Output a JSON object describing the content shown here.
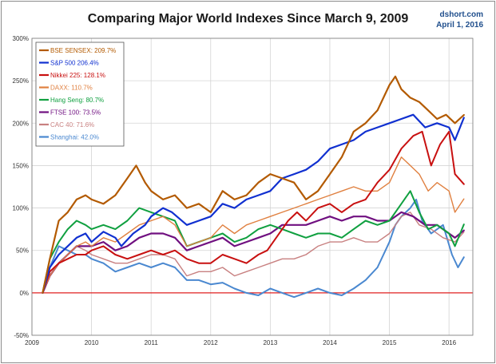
{
  "chart_data": {
    "type": "line",
    "title": "Comparing Major World Indexes Since March 9, 2009",
    "source": "dshort.com",
    "date_label": "April 1, 2016",
    "xlabel": "",
    "ylabel": "",
    "x_ticks": [
      "2009",
      "2010",
      "2011",
      "2012",
      "2013",
      "2014",
      "2015",
      "2016"
    ],
    "y_ticks": [
      "-50%",
      "0%",
      "50%",
      "100%",
      "150%",
      "200%",
      "250%",
      "300%"
    ],
    "xlim": [
      2009.0,
      2016.4
    ],
    "ylim": [
      -50,
      300
    ],
    "grid": true,
    "legend_position": "top-left",
    "zero_line_color": "#e02020",
    "series": [
      {
        "name": "BSE SENSEX: 209.7%",
        "color": "#b35a00",
        "width": 2.2,
        "x": [
          2009.18,
          2009.3,
          2009.45,
          2009.6,
          2009.75,
          2009.9,
          2010.0,
          2010.2,
          2010.4,
          2010.6,
          2010.75,
          2010.9,
          2011.0,
          2011.2,
          2011.4,
          2011.6,
          2011.8,
          2012.0,
          2012.2,
          2012.4,
          2012.6,
          2012.8,
          2013.0,
          2013.2,
          2013.4,
          2013.6,
          2013.8,
          2014.0,
          2014.2,
          2014.4,
          2014.6,
          2014.8,
          2015.0,
          2015.1,
          2015.2,
          2015.35,
          2015.5,
          2015.65,
          2015.8,
          2015.95,
          2016.1,
          2016.25
        ],
        "y": [
          0,
          40,
          85,
          95,
          110,
          115,
          110,
          105,
          115,
          135,
          150,
          130,
          120,
          110,
          115,
          100,
          105,
          95,
          120,
          110,
          115,
          130,
          140,
          135,
          130,
          110,
          120,
          140,
          160,
          190,
          200,
          215,
          245,
          255,
          240,
          230,
          225,
          215,
          205,
          210,
          200,
          209.7
        ]
      },
      {
        "name": "S&P 500 206.4%",
        "color": "#1030d0",
        "width": 2.2,
        "x": [
          2009.18,
          2009.3,
          2009.45,
          2009.6,
          2009.75,
          2009.9,
          2010.0,
          2010.2,
          2010.4,
          2010.5,
          2010.7,
          2010.9,
          2011.0,
          2011.2,
          2011.35,
          2011.6,
          2011.8,
          2012.0,
          2012.2,
          2012.4,
          2012.6,
          2012.8,
          2013.0,
          2013.2,
          2013.4,
          2013.6,
          2013.8,
          2014.0,
          2014.2,
          2014.4,
          2014.6,
          2014.8,
          2015.0,
          2015.2,
          2015.4,
          2015.6,
          2015.8,
          2016.0,
          2016.1,
          2016.25
        ],
        "y": [
          0,
          30,
          45,
          55,
          65,
          70,
          60,
          72,
          65,
          55,
          70,
          80,
          90,
          100,
          95,
          80,
          85,
          90,
          105,
          100,
          110,
          115,
          120,
          135,
          140,
          145,
          155,
          170,
          175,
          180,
          190,
          195,
          200,
          205,
          210,
          195,
          200,
          195,
          180,
          206.4
        ]
      },
      {
        "name": "Nikkei 225: 128.1%",
        "color": "#c81010",
        "width": 2.0,
        "x": [
          2009.18,
          2009.3,
          2009.45,
          2009.6,
          2009.75,
          2009.9,
          2010.0,
          2010.2,
          2010.4,
          2010.6,
          2010.8,
          2011.0,
          2011.2,
          2011.4,
          2011.6,
          2011.8,
          2012.0,
          2012.2,
          2012.4,
          2012.6,
          2012.8,
          2012.95,
          2013.1,
          2013.3,
          2013.45,
          2013.6,
          2013.8,
          2014.0,
          2014.2,
          2014.4,
          2014.6,
          2014.8,
          2015.0,
          2015.2,
          2015.4,
          2015.55,
          2015.7,
          2015.85,
          2016.0,
          2016.1,
          2016.25
        ],
        "y": [
          0,
          25,
          35,
          40,
          45,
          45,
          50,
          55,
          45,
          40,
          45,
          50,
          45,
          50,
          40,
          35,
          35,
          45,
          40,
          35,
          45,
          50,
          65,
          85,
          95,
          85,
          100,
          105,
          95,
          105,
          110,
          130,
          145,
          170,
          185,
          190,
          150,
          175,
          190,
          140,
          128.1
        ]
      },
      {
        "name": "DAXX: 110.7%",
        "color": "#e08040",
        "width": 1.4,
        "x": [
          2009.18,
          2009.3,
          2009.45,
          2009.6,
          2009.75,
          2009.9,
          2010.0,
          2010.2,
          2010.4,
          2010.6,
          2010.8,
          2011.0,
          2011.2,
          2011.4,
          2011.6,
          2011.8,
          2012.0,
          2012.2,
          2012.4,
          2012.6,
          2012.8,
          2013.0,
          2013.2,
          2013.4,
          2013.6,
          2013.8,
          2014.0,
          2014.2,
          2014.4,
          2014.6,
          2014.8,
          2015.0,
          2015.2,
          2015.35,
          2015.5,
          2015.65,
          2015.8,
          2016.0,
          2016.1,
          2016.25
        ],
        "y": [
          0,
          20,
          35,
          45,
          55,
          60,
          55,
          65,
          60,
          70,
          80,
          85,
          90,
          80,
          55,
          60,
          65,
          80,
          70,
          80,
          85,
          90,
          95,
          100,
          105,
          110,
          115,
          120,
          125,
          120,
          120,
          130,
          160,
          150,
          140,
          120,
          130,
          120,
          95,
          110.7
        ]
      },
      {
        "name": "Hang Seng: 80.7%",
        "color": "#10a040",
        "width": 2.0,
        "x": [
          2009.18,
          2009.3,
          2009.45,
          2009.6,
          2009.75,
          2009.9,
          2010.0,
          2010.2,
          2010.4,
          2010.6,
          2010.8,
          2011.0,
          2011.2,
          2011.4,
          2011.6,
          2011.8,
          2012.0,
          2012.2,
          2012.4,
          2012.6,
          2012.8,
          2013.0,
          2013.2,
          2013.4,
          2013.6,
          2013.8,
          2014.0,
          2014.2,
          2014.4,
          2014.6,
          2014.8,
          2015.0,
          2015.2,
          2015.35,
          2015.5,
          2015.65,
          2015.8,
          2016.0,
          2016.1,
          2016.25
        ],
        "y": [
          0,
          40,
          60,
          75,
          85,
          80,
          75,
          80,
          75,
          85,
          100,
          95,
          90,
          85,
          55,
          60,
          65,
          70,
          60,
          65,
          75,
          80,
          75,
          70,
          65,
          70,
          70,
          65,
          75,
          85,
          80,
          85,
          105,
          120,
          95,
          75,
          80,
          70,
          55,
          80.7
        ]
      },
      {
        "name": "FTSE 100: 73.5%",
        "color": "#701080",
        "width": 2.2,
        "x": [
          2009.18,
          2009.3,
          2009.45,
          2009.6,
          2009.75,
          2009.9,
          2010.0,
          2010.2,
          2010.4,
          2010.6,
          2010.8,
          2011.0,
          2011.2,
          2011.4,
          2011.6,
          2011.8,
          2012.0,
          2012.2,
          2012.4,
          2012.6,
          2012.8,
          2013.0,
          2013.2,
          2013.4,
          2013.6,
          2013.8,
          2014.0,
          2014.2,
          2014.4,
          2014.6,
          2014.8,
          2015.0,
          2015.2,
          2015.4,
          2015.6,
          2015.8,
          2016.0,
          2016.1,
          2016.25
        ],
        "y": [
          0,
          20,
          35,
          45,
          55,
          55,
          55,
          60,
          50,
          55,
          65,
          70,
          70,
          65,
          50,
          55,
          60,
          65,
          55,
          60,
          65,
          70,
          80,
          80,
          80,
          85,
          90,
          85,
          90,
          90,
          85,
          85,
          95,
          90,
          80,
          80,
          70,
          65,
          73.5
        ]
      },
      {
        "name": "CAC 40: 71.6%",
        "color": "#c88080",
        "width": 1.4,
        "x": [
          2009.18,
          2009.3,
          2009.45,
          2009.6,
          2009.75,
          2009.9,
          2010.0,
          2010.2,
          2010.4,
          2010.6,
          2010.8,
          2011.0,
          2011.2,
          2011.4,
          2011.6,
          2011.8,
          2012.0,
          2012.2,
          2012.4,
          2012.6,
          2012.8,
          2013.0,
          2013.2,
          2013.4,
          2013.6,
          2013.8,
          2014.0,
          2014.2,
          2014.4,
          2014.6,
          2014.8,
          2015.0,
          2015.2,
          2015.35,
          2015.5,
          2015.7,
          2015.9,
          2016.1,
          2016.25
        ],
        "y": [
          0,
          20,
          35,
          45,
          55,
          50,
          45,
          40,
          35,
          35,
          40,
          45,
          45,
          40,
          20,
          25,
          25,
          30,
          20,
          25,
          30,
          35,
          40,
          40,
          45,
          55,
          60,
          60,
          65,
          60,
          60,
          70,
          90,
          95,
          80,
          75,
          65,
          60,
          71.6
        ]
      },
      {
        "name": "Shanghai: 42.0%",
        "color": "#4a88d0",
        "width": 2.0,
        "x": [
          2009.18,
          2009.3,
          2009.45,
          2009.6,
          2009.75,
          2009.9,
          2010.0,
          2010.2,
          2010.4,
          2010.6,
          2010.8,
          2011.0,
          2011.2,
          2011.4,
          2011.6,
          2011.8,
          2012.0,
          2012.2,
          2012.4,
          2012.6,
          2012.8,
          2013.0,
          2013.2,
          2013.4,
          2013.6,
          2013.8,
          2014.0,
          2014.2,
          2014.4,
          2014.6,
          2014.8,
          2015.0,
          2015.1,
          2015.2,
          2015.35,
          2015.45,
          2015.55,
          2015.7,
          2015.9,
          2016.05,
          2016.15,
          2016.25
        ],
        "y": [
          0,
          30,
          55,
          50,
          45,
          45,
          40,
          35,
          25,
          30,
          35,
          30,
          35,
          30,
          15,
          15,
          10,
          12,
          5,
          0,
          -3,
          5,
          0,
          -5,
          0,
          5,
          0,
          -3,
          5,
          15,
          30,
          60,
          80,
          90,
          100,
          110,
          85,
          70,
          80,
          45,
          30,
          42.0
        ]
      }
    ]
  }
}
